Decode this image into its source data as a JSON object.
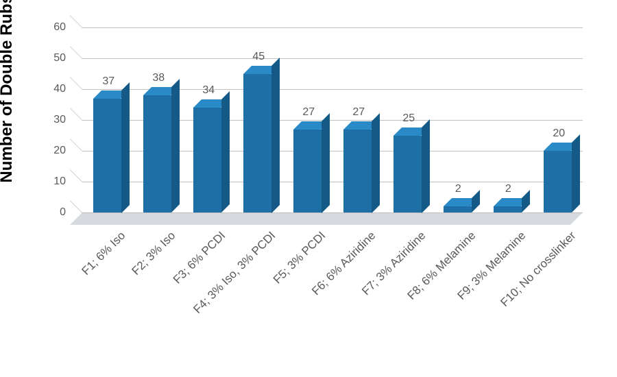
{
  "chart": {
    "type": "bar-3d",
    "y_axis_title": "Number of Double Rubs",
    "y_axis_title_fontsize": 24,
    "categories": [
      "F1; 6% Iso",
      "F2; 3% Iso",
      "F3; 6% PCDI",
      "F4; 3% Iso, 3% PCDI",
      "F5; 3% PCDI",
      "F6; 6% Aziridine",
      "F7; 3% Aziridine",
      "F8; 6% Melamine",
      "F9; 3% Melamine",
      "F10; No crosslinker"
    ],
    "values": [
      37,
      38,
      34,
      45,
      27,
      27,
      25,
      2,
      2,
      20
    ],
    "ylim": [
      0,
      60
    ],
    "ytick_step": 10,
    "tick_fontsize": 16,
    "data_label_fontsize": 16,
    "category_label_fontsize": 17,
    "bar_face_color": "#1d6fa5",
    "bar_top_color": "#2a89c7",
    "bar_side_color": "#155a86",
    "grid_color": "#bfbfbf",
    "floor_color": "#d1d6db",
    "axis_text_color": "#595959",
    "background_color": "#ffffff",
    "bar_width_ratio": 0.55
  }
}
